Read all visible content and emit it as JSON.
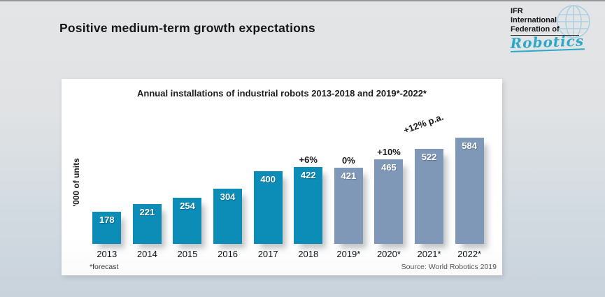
{
  "slide": {
    "title": "Positive medium-term growth expectations"
  },
  "logo": {
    "line1": "IFR",
    "line2": "International",
    "line3": "Federation of",
    "script": "Robotics",
    "globe_color": "#abcfe2",
    "script_color": "#2da9c8"
  },
  "chart_data": {
    "type": "bar",
    "title": "Annual installations of industrial robots 2013-2018 and 2019*-2022*",
    "xlabel": "",
    "ylabel": "'000 of units",
    "categories": [
      "2013",
      "2014",
      "2015",
      "2016",
      "2017",
      "2018",
      "2019*",
      "2020*",
      "2021*",
      "2022*"
    ],
    "values": [
      178,
      221,
      254,
      304,
      400,
      422,
      421,
      465,
      522,
      584
    ],
    "bar_types": [
      "actual",
      "actual",
      "actual",
      "actual",
      "actual",
      "actual",
      "forecast",
      "forecast",
      "forecast",
      "forecast"
    ],
    "growth_labels": [
      null,
      null,
      null,
      null,
      null,
      "+6%",
      "0%",
      "+10%",
      null,
      null
    ],
    "annotation": "+12% p.a.",
    "series_colors": {
      "actual": "#0b8db8",
      "forecast": "#7f98b8"
    },
    "ylim": [
      0,
      600
    ],
    "grid": false,
    "legend": false,
    "value_labels_inside_bars": true,
    "footnote": "*forecast",
    "source": "Source: World Robotics 2019"
  }
}
